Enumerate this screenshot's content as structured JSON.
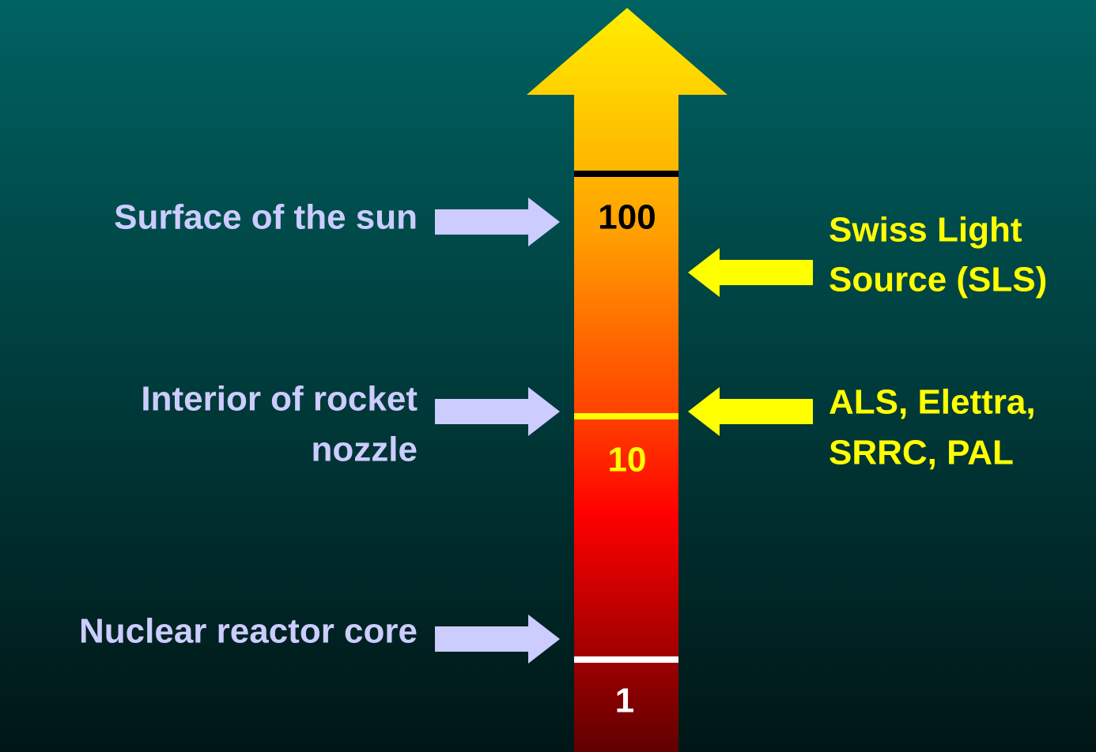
{
  "scale": {
    "marks": [
      "100",
      "10",
      "1"
    ]
  },
  "left_labels": [
    {
      "lines": [
        "Surface of the sun"
      ]
    },
    {
      "lines": [
        "Interior of rocket",
        "nozzle"
      ]
    },
    {
      "lines": [
        "Nuclear reactor core"
      ]
    }
  ],
  "right_labels": [
    {
      "lines": [
        "Swiss Light",
        "Source (SLS)"
      ]
    },
    {
      "lines": [
        "ALS, Elettra,",
        "SRRC, PAL"
      ]
    }
  ]
}
